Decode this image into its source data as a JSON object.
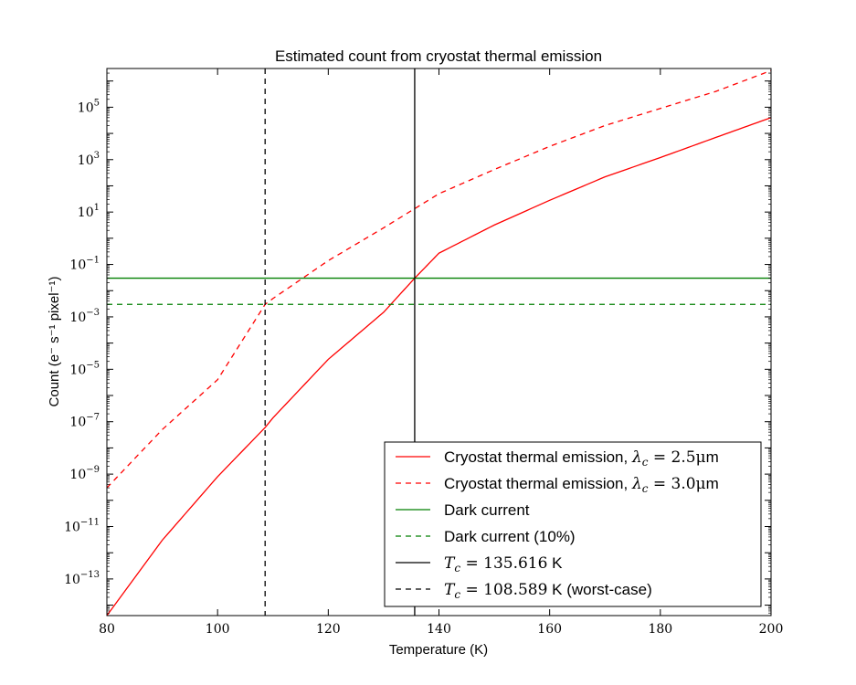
{
  "chart_data": {
    "type": "line",
    "title": "Estimated count from cryostat thermal emission",
    "xlabel": "Temperature (K)",
    "ylabel": "Count (e⁻ s⁻¹ pixel⁻¹)",
    "xlim": [
      80,
      200
    ],
    "ylim": [
      4e-15,
      3000000.0
    ],
    "yscale": "log",
    "grid": false,
    "legend_position": "lower-right",
    "xticks": [
      80,
      100,
      120,
      140,
      160,
      180,
      200
    ],
    "xtick_labels": [
      "80",
      "100",
      "120",
      "140",
      "160",
      "180",
      "200"
    ],
    "yticks": [
      1e-13,
      1e-11,
      1e-09,
      1e-07,
      1e-05,
      0.001,
      0.1,
      10.0,
      1000.0,
      100000.0
    ],
    "ytick_exponents": [
      "−13",
      "−11",
      "−9",
      "−7",
      "−5",
      "−3",
      "−1",
      "1",
      "3",
      "5"
    ],
    "ytick_base": "10",
    "series": [
      {
        "name": "Cryostat thermal emission, λc = 2.5μm",
        "color": "#ff0000",
        "style": "solid",
        "x": [
          80,
          90,
          100,
          108.589,
          110,
          120,
          130,
          135.616,
          140,
          150,
          160,
          170,
          180,
          190,
          200
        ],
        "values": [
          4e-15,
          3e-12,
          8e-10,
          6e-08,
          1.4e-07,
          2.4e-05,
          0.0015,
          0.03,
          0.27,
          3.2,
          28,
          220,
          1200,
          7000,
          40000
        ]
      },
      {
        "name": "Cryostat thermal emission, λc = 3.0μm",
        "color": "#ff0000",
        "style": "dashed",
        "x": [
          80,
          90,
          100,
          108.589,
          110,
          120,
          130,
          140,
          150,
          160,
          170,
          180,
          190,
          200
        ],
        "values": [
          3e-10,
          5e-08,
          4e-06,
          0.003,
          0.005,
          0.14,
          2.5,
          50,
          420,
          3200,
          20000,
          90000,
          400000,
          2500000
        ]
      },
      {
        "name": "Dark current",
        "color": "#007f00",
        "style": "solid",
        "x": [
          80,
          200
        ],
        "values": [
          0.03,
          0.03
        ]
      },
      {
        "name": "Dark current (10%)",
        "color": "#007f00",
        "style": "dashed",
        "x": [
          80,
          200
        ],
        "values": [
          0.003,
          0.003
        ]
      }
    ],
    "vlines": [
      {
        "name": "Tc = 135.616 K",
        "x": 135.616,
        "color": "#000000",
        "style": "solid"
      },
      {
        "name": "Tc = 108.589 K (worst-case)",
        "x": 108.589,
        "color": "#000000",
        "style": "dashed"
      }
    ],
    "legend": [
      {
        "prefix": "Cryostat thermal emission, ",
        "math": "λc = 2.5μ",
        "suffix": "m",
        "color": "#ff0000",
        "style": "solid"
      },
      {
        "prefix": "Cryostat thermal emission, ",
        "math": "λc = 3.0μ",
        "suffix": "m",
        "color": "#ff0000",
        "style": "dashed"
      },
      {
        "prefix": "Dark current",
        "math": "",
        "suffix": "",
        "color": "#007f00",
        "style": "solid"
      },
      {
        "prefix": "Dark current (10%)",
        "math": "",
        "suffix": "",
        "color": "#007f00",
        "style": "dashed"
      },
      {
        "prefix": "",
        "math": "Tc = 135.616",
        "suffix": " K",
        "color": "#000000",
        "style": "solid"
      },
      {
        "prefix": "",
        "math": "Tc = 108.589",
        "suffix": " K (worst-case)",
        "color": "#000000",
        "style": "dashed"
      }
    ]
  }
}
